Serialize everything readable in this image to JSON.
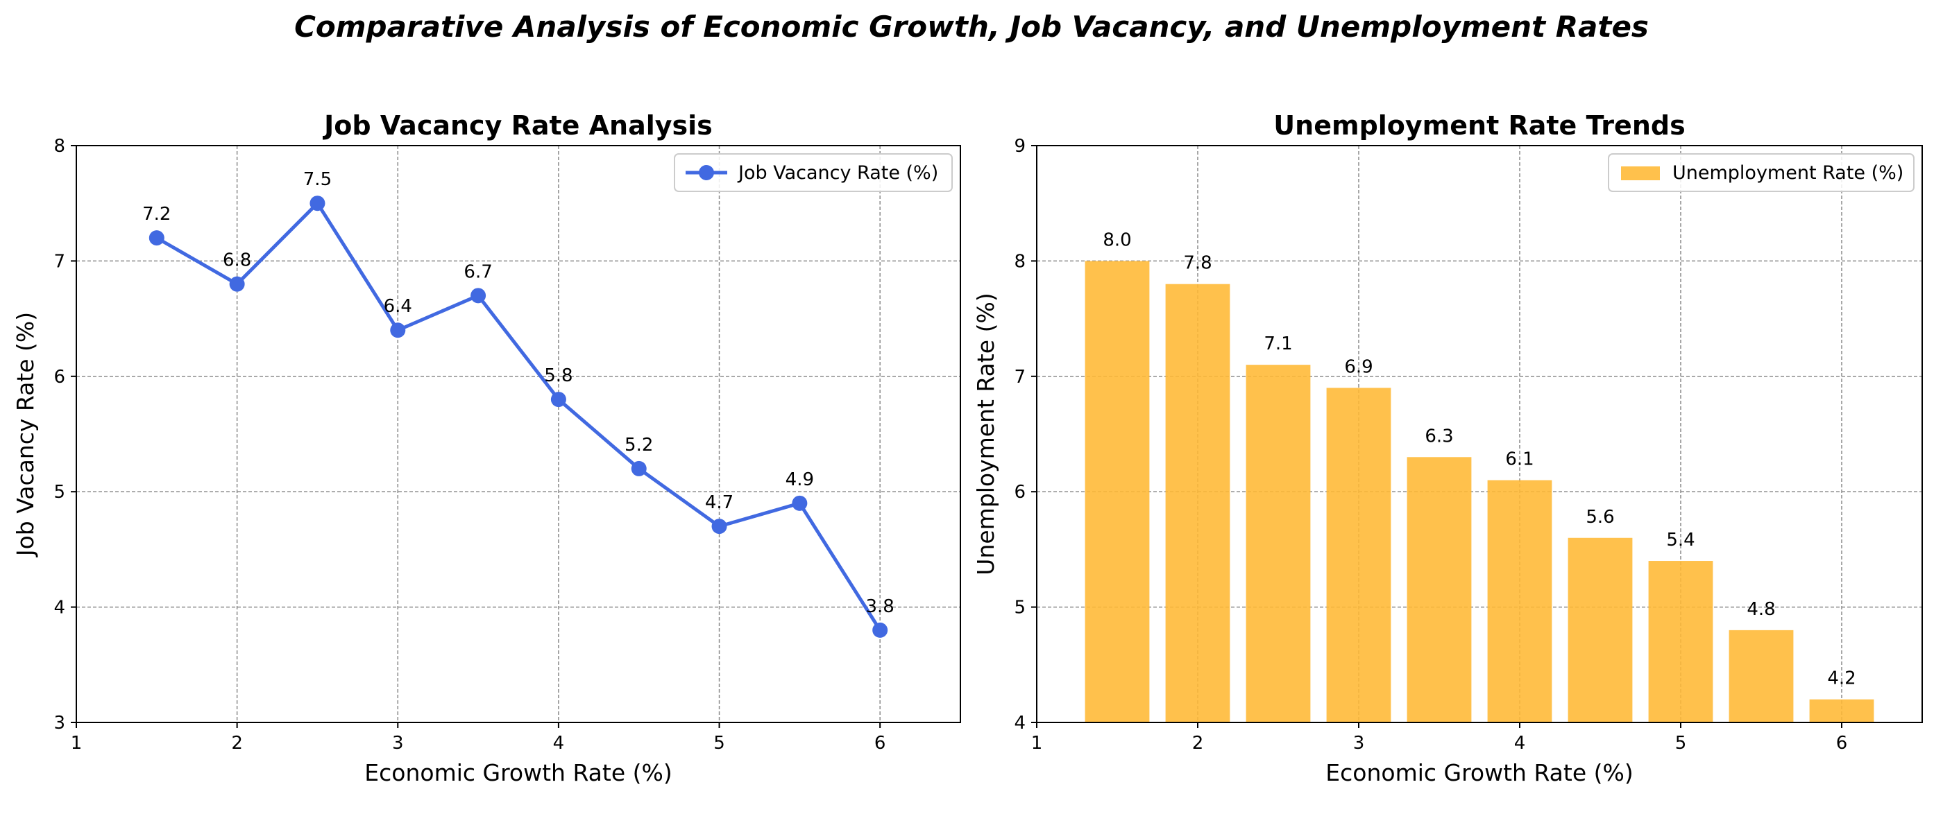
{
  "figure": {
    "title": "Comparative Analysis of Economic Growth, Job Vacancy, and Unemployment Rates"
  },
  "chart_data": [
    {
      "type": "line",
      "title": "Job Vacancy Rate Analysis",
      "xlabel": "Economic Growth Rate (%)",
      "ylabel": "Job Vacancy Rate (%)",
      "xlim": [
        1,
        6.5
      ],
      "ylim": [
        3,
        8
      ],
      "xticks": [
        1,
        2,
        3,
        4,
        5,
        6
      ],
      "yticks": [
        3,
        4,
        5,
        6,
        7,
        8
      ],
      "grid": true,
      "legend_position": "top-right",
      "x": [
        1.5,
        2.0,
        2.5,
        3.0,
        3.5,
        4.0,
        4.5,
        5.0,
        5.5,
        6.0
      ],
      "series": [
        {
          "name": "Job Vacancy Rate (%)",
          "color": "#4169E1",
          "values": [
            7.2,
            6.8,
            7.5,
            6.4,
            6.7,
            5.8,
            5.2,
            4.7,
            4.9,
            3.8
          ],
          "labels": [
            "7.2",
            "6.8",
            "7.5",
            "6.4",
            "6.7",
            "5.8",
            "5.2",
            "4.7",
            "4.9",
            "3.8"
          ]
        }
      ]
    },
    {
      "type": "bar",
      "title": "Unemployment Rate Trends",
      "xlabel": "Economic Growth Rate (%)",
      "ylabel": "Unemployment Rate (%)",
      "xlim": [
        1,
        6.5
      ],
      "ylim": [
        4,
        9
      ],
      "xticks": [
        1,
        2,
        3,
        4,
        5,
        6
      ],
      "yticks": [
        4,
        5,
        6,
        7,
        8,
        9
      ],
      "grid": true,
      "legend_position": "top-right",
      "bar_width": 0.4,
      "x": [
        1.5,
        2.0,
        2.5,
        3.0,
        3.5,
        4.0,
        4.5,
        5.0,
        5.5,
        6.0
      ],
      "series": [
        {
          "name": "Unemployment Rate (%)",
          "color": "#FFB833",
          "values": [
            8.0,
            7.8,
            7.1,
            6.9,
            6.3,
            6.1,
            5.6,
            5.4,
            4.8,
            4.2
          ],
          "labels": [
            "8.0",
            "7.8",
            "7.1",
            "6.9",
            "6.3",
            "6.1",
            "5.6",
            "5.4",
            "4.8",
            "4.2"
          ]
        }
      ]
    }
  ]
}
